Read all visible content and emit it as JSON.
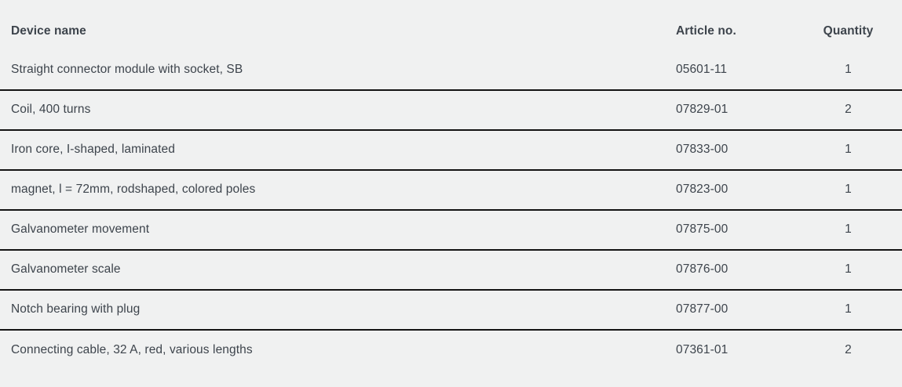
{
  "colors": {
    "background": "#f0f1f1",
    "text": "#3d444c",
    "divider": "#131313"
  },
  "table": {
    "columns": {
      "device": "Device name",
      "article": "Article no.",
      "quantity": "Quantity"
    },
    "rows": [
      {
        "device": "Straight connector module with socket, SB",
        "article": "05601-11",
        "qty": "1"
      },
      {
        "device": "Coil, 400 turns",
        "article": "07829-01",
        "qty": "2"
      },
      {
        "device": "Iron core, I-shaped, laminated",
        "article": "07833-00",
        "qty": "1"
      },
      {
        "device": "magnet, l = 72mm, rodshaped, colored poles",
        "article": "07823-00",
        "qty": "1"
      },
      {
        "device": "Galvanometer movement",
        "article": "07875-00",
        "qty": "1"
      },
      {
        "device": "Galvanometer scale",
        "article": "07876-00",
        "qty": "1"
      },
      {
        "device": "Notch bearing with plug",
        "article": "07877-00",
        "qty": "1"
      },
      {
        "device": "Connecting cable, 32 A, red, various lengths",
        "article": "07361-01",
        "qty": "2"
      }
    ]
  }
}
